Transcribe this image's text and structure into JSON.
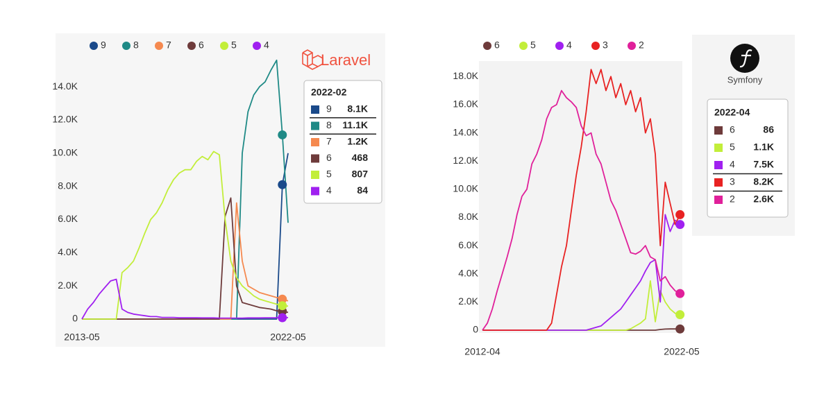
{
  "chart_data": [
    {
      "type": "line",
      "logo_text": "Laravel",
      "x": [
        "2013-05",
        "2013-08",
        "2013-11",
        "2014-02",
        "2014-05",
        "2014-08",
        "2014-11",
        "2015-02",
        "2015-05",
        "2015-08",
        "2015-11",
        "2016-02",
        "2016-05",
        "2016-08",
        "2016-11",
        "2017-02",
        "2017-05",
        "2017-08",
        "2017-11",
        "2018-02",
        "2018-05",
        "2018-08",
        "2018-11",
        "2019-02",
        "2019-05",
        "2019-08",
        "2019-11",
        "2020-02",
        "2020-05",
        "2020-08",
        "2020-11",
        "2021-02",
        "2021-05",
        "2021-08",
        "2021-11",
        "2022-02",
        "2022-05"
      ],
      "xlim": [
        "2013-05",
        "2022-05"
      ],
      "xticks": [
        "2013-05",
        "2022-05"
      ],
      "ylim": [
        0,
        15800
      ],
      "yticks": [
        0,
        {
          "value": 2000,
          "label": "2.0K"
        },
        {
          "value": 4000,
          "label": "4.0K"
        },
        {
          "value": 6000,
          "label": "6.0K"
        },
        {
          "value": 8000,
          "label": "8.0K"
        },
        {
          "value": 10000,
          "label": "10.0K"
        },
        {
          "value": 12000,
          "label": "12.0K"
        },
        {
          "value": 14000,
          "label": "14.0K"
        }
      ],
      "grid": false,
      "series": [
        {
          "name": "9",
          "color": "#1a4a8a",
          "values": [
            0,
            0,
            0,
            0,
            0,
            0,
            0,
            0,
            0,
            0,
            0,
            0,
            0,
            0,
            0,
            0,
            0,
            0,
            0,
            0,
            0,
            0,
            0,
            0,
            0,
            0,
            0,
            0,
            0,
            0,
            0,
            0,
            0,
            0,
            0,
            8100,
            10000
          ]
        },
        {
          "name": "8",
          "color": "#1f8a86",
          "values": [
            0,
            0,
            0,
            0,
            0,
            0,
            0,
            0,
            0,
            0,
            0,
            0,
            0,
            0,
            0,
            0,
            0,
            0,
            0,
            0,
            0,
            0,
            0,
            0,
            0,
            0,
            0,
            0,
            10000,
            12500,
            13500,
            14000,
            14300,
            15000,
            15600,
            11100,
            5800
          ]
        },
        {
          "name": "7",
          "color": "#f5894f",
          "values": [
            0,
            0,
            0,
            0,
            0,
            0,
            0,
            0,
            0,
            0,
            0,
            0,
            0,
            0,
            0,
            0,
            0,
            0,
            0,
            0,
            0,
            0,
            0,
            0,
            0,
            0,
            0,
            7000,
            3500,
            2000,
            1800,
            1600,
            1500,
            1400,
            1300,
            1200,
            1100
          ]
        },
        {
          "name": "6",
          "color": "#6e3b3b",
          "values": [
            0,
            0,
            0,
            0,
            0,
            0,
            0,
            0,
            0,
            0,
            0,
            0,
            0,
            0,
            0,
            0,
            0,
            0,
            0,
            0,
            0,
            0,
            0,
            0,
            0,
            6200,
            7300,
            2000,
            1000,
            900,
            800,
            700,
            650,
            600,
            500,
            468,
            400
          ]
        },
        {
          "name": "5",
          "color": "#c2ee3a",
          "values": [
            0,
            0,
            0,
            0,
            0,
            0,
            0,
            2800,
            3100,
            3500,
            4300,
            5200,
            6000,
            6400,
            7000,
            7800,
            8400,
            8800,
            9000,
            9000,
            9500,
            9800,
            9600,
            10100,
            9900,
            6000,
            3500,
            2500,
            2000,
            1700,
            1400,
            1200,
            1100,
            1000,
            900,
            807,
            780
          ]
        },
        {
          "name": "4",
          "color": "#a020f0",
          "values": [
            0,
            600,
            1000,
            1500,
            1900,
            2300,
            2400,
            600,
            400,
            300,
            250,
            200,
            150,
            150,
            100,
            100,
            100,
            80,
            80,
            80,
            80,
            70,
            70,
            70,
            60,
            60,
            60,
            60,
            60,
            70,
            70,
            70,
            80,
            80,
            80,
            84,
            90
          ]
        }
      ],
      "tooltip": {
        "title": "2022-02",
        "value_labels": [
          "8.1K",
          "11.1K",
          "1.2K",
          "468",
          "807",
          "84"
        ]
      }
    },
    {
      "type": "line",
      "logo_text": "Symfony",
      "x": [
        "2012-04",
        "2012-07",
        "2012-10",
        "2013-01",
        "2013-04",
        "2013-07",
        "2013-10",
        "2014-01",
        "2014-04",
        "2014-07",
        "2014-10",
        "2015-01",
        "2015-04",
        "2015-07",
        "2015-10",
        "2016-01",
        "2016-04",
        "2016-07",
        "2016-10",
        "2017-01",
        "2017-04",
        "2017-07",
        "2017-10",
        "2018-01",
        "2018-04",
        "2018-07",
        "2018-10",
        "2019-01",
        "2019-04",
        "2019-07",
        "2019-10",
        "2020-01",
        "2020-04",
        "2020-07",
        "2020-10",
        "2021-01",
        "2021-04",
        "2021-07",
        "2021-10",
        "2022-01",
        "2022-04"
      ],
      "xlim": [
        "2012-04",
        "2022-05"
      ],
      "xticks": [
        "2012-04",
        "2022-05"
      ],
      "ylim": [
        0,
        19000
      ],
      "yticks": [
        0,
        {
          "value": 2000,
          "label": "2.0K"
        },
        {
          "value": 4000,
          "label": "4.0K"
        },
        {
          "value": 6000,
          "label": "6.0K"
        },
        {
          "value": 8000,
          "label": "8.0K"
        },
        {
          "value": 10000,
          "label": "10.0K"
        },
        {
          "value": 12000,
          "label": "12.0K"
        },
        {
          "value": 14000,
          "label": "14.0K"
        },
        {
          "value": 16000,
          "label": "16.0K"
        },
        {
          "value": 18000,
          "label": "18.0K"
        }
      ],
      "grid": false,
      "series": [
        {
          "name": "6",
          "color": "#6e3b3b",
          "values": [
            0,
            0,
            0,
            0,
            0,
            0,
            0,
            0,
            0,
            0,
            0,
            0,
            0,
            0,
            0,
            0,
            0,
            0,
            0,
            0,
            0,
            0,
            0,
            0,
            0,
            0,
            0,
            0,
            0,
            0,
            0,
            0,
            0,
            0,
            0,
            0,
            50,
            80,
            90,
            90,
            86
          ]
        },
        {
          "name": "5",
          "color": "#c2ee3a",
          "values": [
            0,
            0,
            0,
            0,
            0,
            0,
            0,
            0,
            0,
            0,
            0,
            0,
            0,
            0,
            0,
            0,
            0,
            0,
            0,
            0,
            0,
            0,
            0,
            0,
            0,
            0,
            0,
            0,
            0,
            0,
            100,
            300,
            500,
            800,
            3500,
            600,
            2800,
            2000,
            1500,
            1200,
            1100
          ]
        },
        {
          "name": "4",
          "color": "#a020f0",
          "values": [
            0,
            0,
            0,
            0,
            0,
            0,
            0,
            0,
            0,
            0,
            0,
            0,
            0,
            0,
            0,
            0,
            0,
            0,
            0,
            0,
            0,
            0,
            100,
            200,
            300,
            600,
            900,
            1200,
            1500,
            2000,
            2500,
            3000,
            3500,
            4200,
            4800,
            5000,
            2000,
            8200,
            7000,
            7800,
            7500
          ]
        },
        {
          "name": "3",
          "color": "#e82222",
          "values": [
            0,
            0,
            0,
            0,
            0,
            0,
            0,
            0,
            0,
            0,
            0,
            0,
            0,
            0,
            500,
            2500,
            4500,
            6000,
            8500,
            11000,
            13000,
            15500,
            18500,
            17500,
            18500,
            17000,
            18000,
            16500,
            17500,
            16000,
            17000,
            15500,
            16500,
            14000,
            15000,
            12500,
            6000,
            10500,
            9000,
            7500,
            8200
          ]
        },
        {
          "name": "2",
          "color": "#e0209a",
          "values": [
            0,
            500,
            1500,
            2800,
            4000,
            5200,
            6500,
            8200,
            9500,
            10000,
            11800,
            12500,
            13500,
            15000,
            15800,
            16000,
            17000,
            16500,
            16200,
            15800,
            14500,
            13800,
            14000,
            12500,
            11800,
            10500,
            9200,
            8500,
            7500,
            6500,
            5500,
            5400,
            5600,
            6000,
            5200,
            5000,
            3500,
            3800,
            3200,
            2800,
            2600
          ]
        }
      ],
      "tooltip": {
        "title": "2022-04",
        "value_labels": [
          "86",
          "1.1K",
          "7.5K",
          "8.2K",
          "2.6K"
        ]
      }
    }
  ]
}
